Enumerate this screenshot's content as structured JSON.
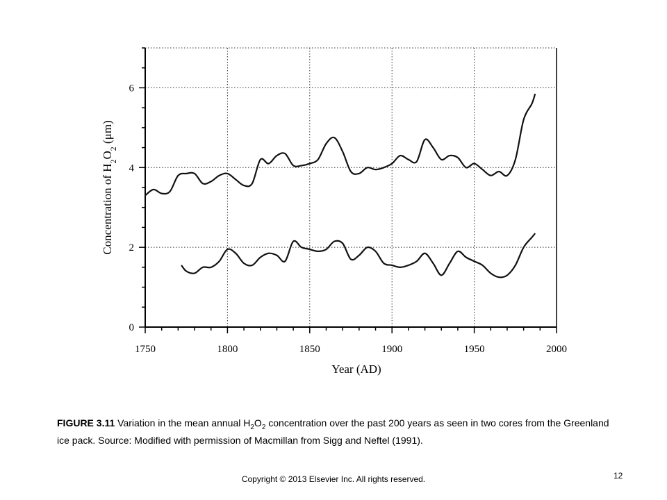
{
  "chart_data": {
    "type": "line",
    "xlabel": "Year (AD)",
    "ylabel_prefix": "Concentration of H",
    "ylabel_sub1": "2",
    "ylabel_mid": "O",
    "ylabel_sub2": "2",
    "ylabel_unit": " (μm)",
    "xlim": [
      1750,
      2000
    ],
    "ylim": [
      0,
      7
    ],
    "x_ticks": [
      1750,
      1800,
      1850,
      1900,
      1950,
      2000
    ],
    "y_ticks": [
      0,
      2,
      4,
      6
    ],
    "grid": "dotted",
    "legend": "none",
    "series": [
      {
        "values": [
          [
            1750,
            3.3
          ],
          [
            1755,
            3.45
          ],
          [
            1760,
            3.35
          ],
          [
            1765,
            3.4
          ],
          [
            1770,
            3.8
          ],
          [
            1775,
            3.85
          ],
          [
            1780,
            3.85
          ],
          [
            1785,
            3.6
          ],
          [
            1790,
            3.65
          ],
          [
            1795,
            3.8
          ],
          [
            1800,
            3.85
          ],
          [
            1805,
            3.7
          ],
          [
            1810,
            3.55
          ],
          [
            1815,
            3.6
          ],
          [
            1820,
            4.2
          ],
          [
            1825,
            4.1
          ],
          [
            1830,
            4.3
          ],
          [
            1835,
            4.35
          ],
          [
            1840,
            4.05
          ],
          [
            1845,
            4.05
          ],
          [
            1850,
            4.1
          ],
          [
            1855,
            4.2
          ],
          [
            1860,
            4.6
          ],
          [
            1865,
            4.75
          ],
          [
            1870,
            4.4
          ],
          [
            1875,
            3.9
          ],
          [
            1880,
            3.85
          ],
          [
            1885,
            4.0
          ],
          [
            1890,
            3.95
          ],
          [
            1895,
            4.0
          ],
          [
            1900,
            4.1
          ],
          [
            1905,
            4.3
          ],
          [
            1910,
            4.2
          ],
          [
            1915,
            4.15
          ],
          [
            1920,
            4.7
          ],
          [
            1925,
            4.5
          ],
          [
            1930,
            4.2
          ],
          [
            1935,
            4.3
          ],
          [
            1940,
            4.25
          ],
          [
            1945,
            4.0
          ],
          [
            1950,
            4.1
          ],
          [
            1955,
            3.95
          ],
          [
            1960,
            3.8
          ],
          [
            1965,
            3.9
          ],
          [
            1970,
            3.8
          ],
          [
            1975,
            4.2
          ],
          [
            1980,
            5.2
          ],
          [
            1985,
            5.6
          ],
          [
            1987,
            5.85
          ]
        ]
      },
      {
        "values": [
          [
            1772,
            1.55
          ],
          [
            1775,
            1.4
          ],
          [
            1780,
            1.35
          ],
          [
            1785,
            1.5
          ],
          [
            1790,
            1.5
          ],
          [
            1795,
            1.65
          ],
          [
            1800,
            1.95
          ],
          [
            1805,
            1.85
          ],
          [
            1810,
            1.6
          ],
          [
            1815,
            1.55
          ],
          [
            1820,
            1.75
          ],
          [
            1825,
            1.85
          ],
          [
            1830,
            1.8
          ],
          [
            1835,
            1.65
          ],
          [
            1840,
            2.15
          ],
          [
            1845,
            2.0
          ],
          [
            1850,
            1.95
          ],
          [
            1855,
            1.9
          ],
          [
            1860,
            1.95
          ],
          [
            1865,
            2.15
          ],
          [
            1870,
            2.1
          ],
          [
            1875,
            1.7
          ],
          [
            1880,
            1.8
          ],
          [
            1885,
            2.0
          ],
          [
            1890,
            1.9
          ],
          [
            1895,
            1.6
          ],
          [
            1900,
            1.55
          ],
          [
            1905,
            1.5
          ],
          [
            1910,
            1.55
          ],
          [
            1915,
            1.65
          ],
          [
            1920,
            1.85
          ],
          [
            1925,
            1.6
          ],
          [
            1930,
            1.3
          ],
          [
            1935,
            1.6
          ],
          [
            1940,
            1.9
          ],
          [
            1945,
            1.75
          ],
          [
            1950,
            1.65
          ],
          [
            1955,
            1.55
          ],
          [
            1960,
            1.35
          ],
          [
            1965,
            1.25
          ],
          [
            1970,
            1.3
          ],
          [
            1975,
            1.55
          ],
          [
            1980,
            2.0
          ],
          [
            1985,
            2.25
          ],
          [
            1987,
            2.35
          ]
        ]
      }
    ]
  },
  "caption": {
    "label": "FIGURE 3.11",
    "text_before": " Variation in the mean annual H",
    "sub1": "2",
    "mid": "O",
    "sub2": "2",
    "text_after": " concentration over the past 200 years as seen in two cores from the Greenland ice pack. Source: Modified with permission of Macmillan from Sigg and Neftel (1991)."
  },
  "copyright": "Copyright © 2013 Elsevier Inc. All rights reserved.",
  "page_number": "12"
}
